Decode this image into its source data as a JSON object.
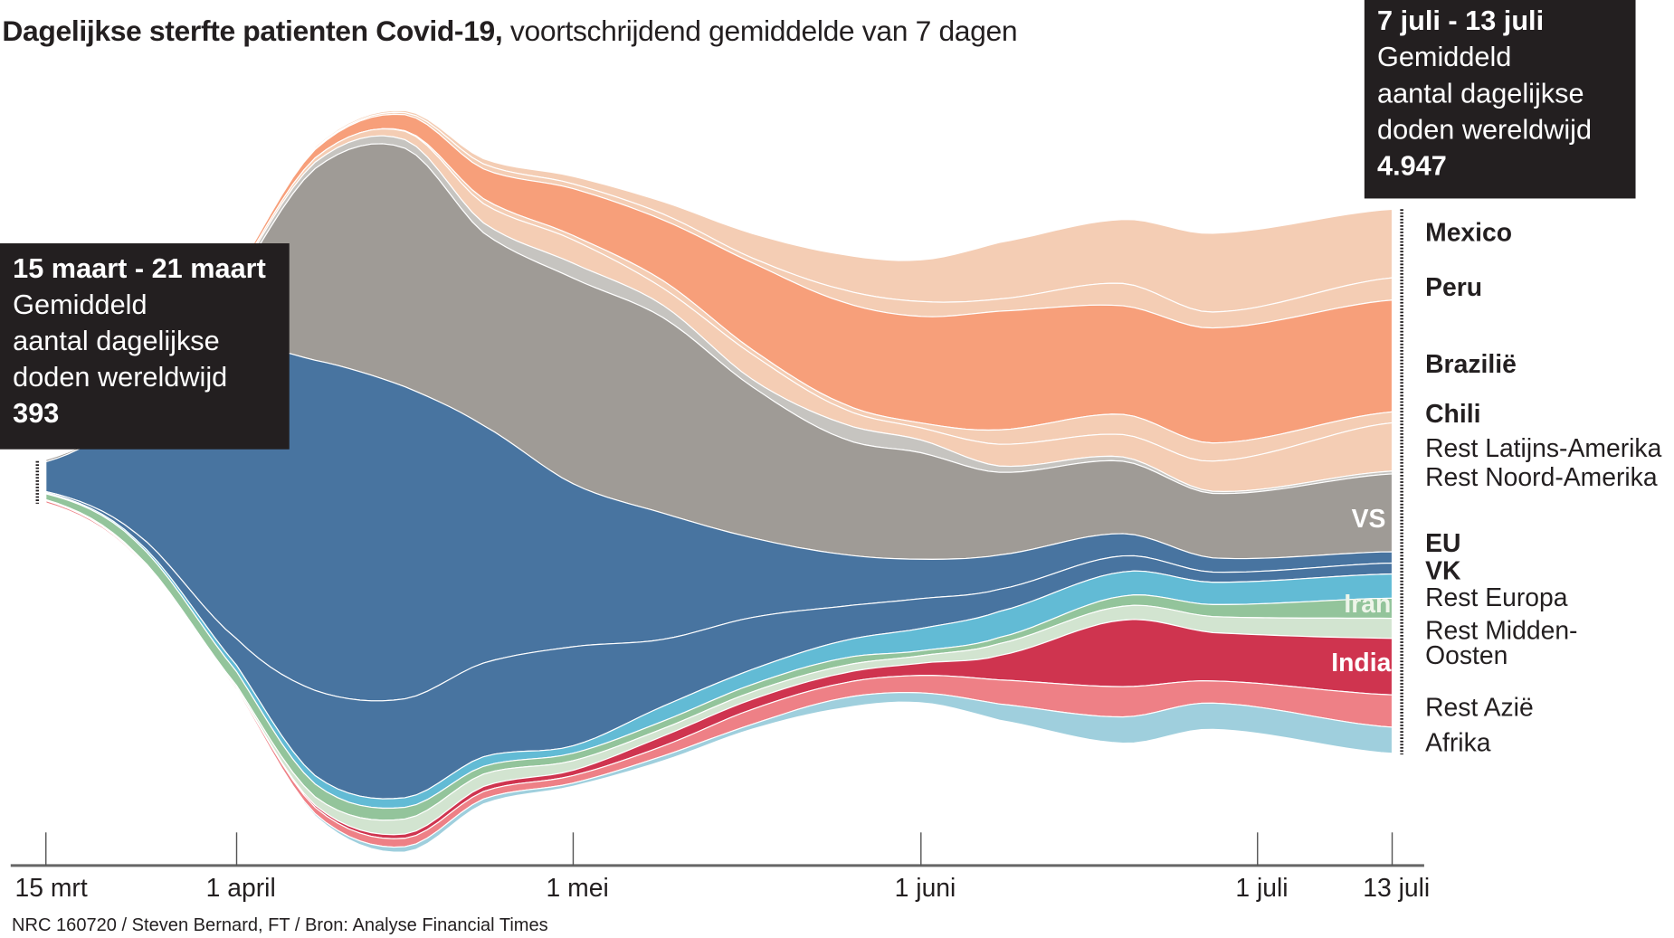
{
  "title": {
    "bold": "Dagelijkse sterfte patienten Covid-19,",
    "rest": " voortschrijdend gemiddelde van 7 dagen"
  },
  "annotation_start": {
    "period": "15 maart - 21 maart",
    "line1": "Gemiddeld",
    "line2": "aantal dagelijkse",
    "line3": "doden wereldwijd",
    "value": "393"
  },
  "annotation_end": {
    "period": "7 juli - 13 juli",
    "line1": "Gemiddeld",
    "line2": "aantal dagelijkse",
    "line3": "doden wereldwijd",
    "value": "4.947"
  },
  "footer": "NRC 160720 / Steven Bernard, FT / Bron: Analyse Financial Times",
  "chart_data": {
    "type": "area",
    "subtype": "streamgraph",
    "unit": "dagelijkse doden (7-daags gemiddelde)",
    "grid": false,
    "legend": "right",
    "dates": [
      "03-15",
      "03-23",
      "04-01",
      "04-08",
      "04-16",
      "04-23",
      "05-01",
      "05-09",
      "05-17",
      "05-25",
      "06-01",
      "06-08",
      "06-19",
      "06-27",
      "07-13"
    ],
    "x_ticks": [
      {
        "label": "15 mrt",
        "date": "03-15"
      },
      {
        "label": "1 april",
        "date": "04-01"
      },
      {
        "label": "1 mei",
        "date": "05-01"
      },
      {
        "label": "1 juni",
        "date": "06-01"
      },
      {
        "label": "1 juli",
        "date": "07-01"
      },
      {
        "label": "13 juli",
        "date": "07-13"
      }
    ],
    "series": [
      {
        "name": "Mexico",
        "color": "#f4cdb4",
        "values": [
          0,
          0,
          10,
          15,
          19,
          48,
          68,
          112,
          223,
          318,
          378,
          513,
          581,
          716,
          623
        ]
      },
      {
        "name": "Peru",
        "color": "#f4cdb4",
        "values": [
          0,
          0,
          0,
          10,
          19,
          45,
          44,
          54,
          44,
          112,
          136,
          112,
          203,
          145,
          203
        ]
      },
      {
        "name": "Brazilië",
        "color": "#f79f7a",
        "values": [
          0,
          5,
          29,
          77,
          145,
          271,
          426,
          552,
          790,
          923,
          968,
          1078,
          987,
          1045,
          1016
        ]
      },
      {
        "name": "Chili",
        "color": "#f4cdb4",
        "values": [
          0,
          0,
          0,
          0,
          5,
          45,
          39,
          68,
          43,
          45,
          45,
          131,
          184,
          165,
          99
        ]
      },
      {
        "name": "Rest Latijns-Amerika",
        "color": "#f4cdb4",
        "values": [
          0,
          0,
          19,
          39,
          77,
          174,
          213,
          155,
          227,
          136,
          110,
          198,
          203,
          275,
          439
        ]
      },
      {
        "name": "Rest Noord-Amerika",
        "color": "#c6c4c0",
        "values": [
          0,
          10,
          39,
          58,
          77,
          90,
          136,
          113,
          68,
          136,
          116,
          58,
          39,
          19,
          26
        ]
      },
      {
        "name": "VS",
        "color": "#9f9b96",
        "values": [
          19,
          77,
          629,
          1742,
          2168,
          1752,
          1868,
          1777,
          1371,
          1055,
          968,
          750,
          658,
          586,
          707
        ]
      },
      {
        "name": "EU",
        "color": "#4874a0",
        "values": [
          271,
          1065,
          2614,
          3001,
          2836,
          2159,
          1481,
          1147,
          722,
          474,
          358,
          312,
          203,
          129,
          103
        ]
      },
      {
        "name": "VK",
        "color": "#4874a0",
        "values": [
          10,
          58,
          242,
          774,
          900,
          852,
          900,
          608,
          472,
          315,
          271,
          201,
          145,
          92,
          99
        ]
      },
      {
        "name": "Rest Europa",
        "color": "#62bbd5",
        "values": [
          10,
          19,
          58,
          77,
          87,
          87,
          68,
          136,
          136,
          158,
          203,
          237,
          220,
          203,
          220
        ]
      },
      {
        "name": "Iran",
        "color": "#93c49b",
        "values": [
          53,
          106,
          126,
          116,
          106,
          71,
          68,
          68,
          68,
          68,
          45,
          56,
          92,
          109,
          183
        ]
      },
      {
        "name": "Rest Midden-Oosten",
        "color": "#d2e4d0",
        "values": [
          10,
          15,
          19,
          77,
          136,
          113,
          87,
          68,
          68,
          68,
          68,
          108,
          126,
          146,
          183
        ]
      },
      {
        "name": "India",
        "color": "#cf344f",
        "values": [
          0,
          0,
          5,
          19,
          39,
          45,
          48,
          90,
          90,
          90,
          111,
          222,
          605,
          439,
          513
        ]
      },
      {
        "name": "Rest Azië",
        "color": "#ee8086",
        "values": [
          20,
          15,
          19,
          58,
          77,
          68,
          68,
          90,
          136,
          136,
          158,
          219,
          275,
          201,
          294
        ]
      },
      {
        "name": "Afrika",
        "color": "#9fcfdd",
        "values": [
          0,
          5,
          10,
          19,
          48,
          45,
          29,
          45,
          45,
          90,
          90,
          147,
          238,
          239,
          238
        ]
      }
    ],
    "totals_annotated": {
      "start": 393,
      "end": 4947
    }
  }
}
